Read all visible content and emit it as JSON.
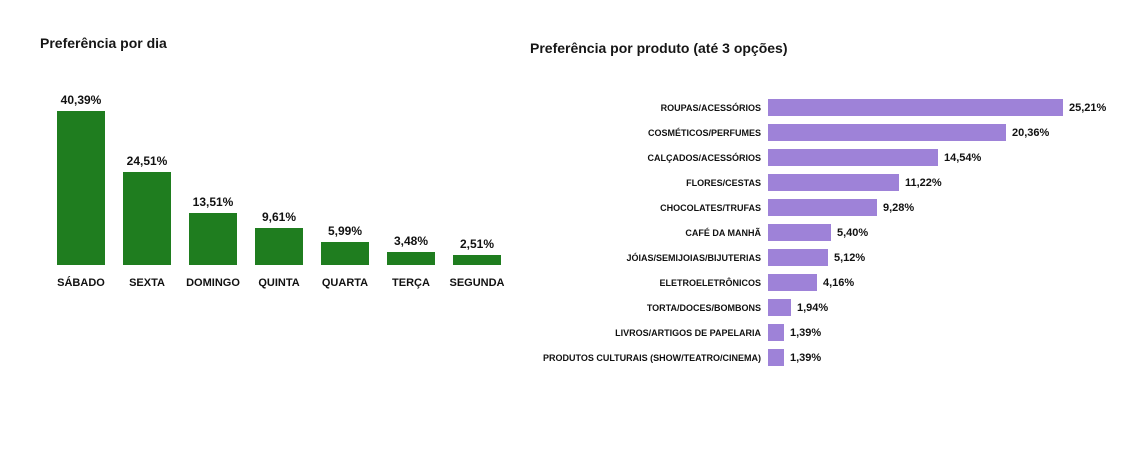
{
  "chart_data": [
    {
      "type": "bar",
      "orientation": "vertical",
      "title": "Preferência por dia",
      "categories": [
        "SÁBADO",
        "SEXTA",
        "DOMINGO",
        "QUINTA",
        "QUARTA",
        "TERÇA",
        "SEGUNDA"
      ],
      "values": [
        40.39,
        24.51,
        13.51,
        9.61,
        5.99,
        3.48,
        2.51
      ],
      "value_labels": [
        "40,39%",
        "24,51%",
        "13,51%",
        "9,61%",
        "5,99%",
        "3,48%",
        "2,51%"
      ],
      "bar_color": "#1F7D1F",
      "ylim": [
        0,
        45
      ],
      "grid": false,
      "legend": "none",
      "data_labels": "above bars"
    },
    {
      "type": "bar",
      "orientation": "horizontal",
      "title": "Preferência por produto (até 3 opções)",
      "categories": [
        "ROUPAS/ACESSÓRIOS",
        "COSMÉTICOS/PERFUMES",
        "CALÇADOS/ACESSÓRIOS",
        "FLORES/CESTAS",
        "CHOCOLATES/TRUFAS",
        "CAFÉ DA MANHÃ",
        "JÓIAS/SEMIJOIAS/BIJUTERIAS",
        "ELETROELETRÔNICOS",
        "TORTA/DOCES/BOMBONS",
        "LIVROS/ARTIGOS DE PAPELARIA",
        "PRODUTOS CULTURAIS (SHOW/TEATRO/CINEMA)"
      ],
      "values": [
        25.21,
        20.36,
        14.54,
        11.22,
        9.28,
        5.4,
        5.12,
        4.16,
        1.94,
        1.39,
        1.39
      ],
      "value_labels": [
        "25,21%",
        "20,36%",
        "14,54%",
        "11,22%",
        "9,28%",
        "5,40%",
        "5,12%",
        "4,16%",
        "1,94%",
        "1,39%",
        "1,39%"
      ],
      "bar_color": "#9E82D8",
      "xlim": [
        0,
        27
      ],
      "grid": false,
      "legend": "none",
      "data_labels": "right of bars"
    }
  ]
}
